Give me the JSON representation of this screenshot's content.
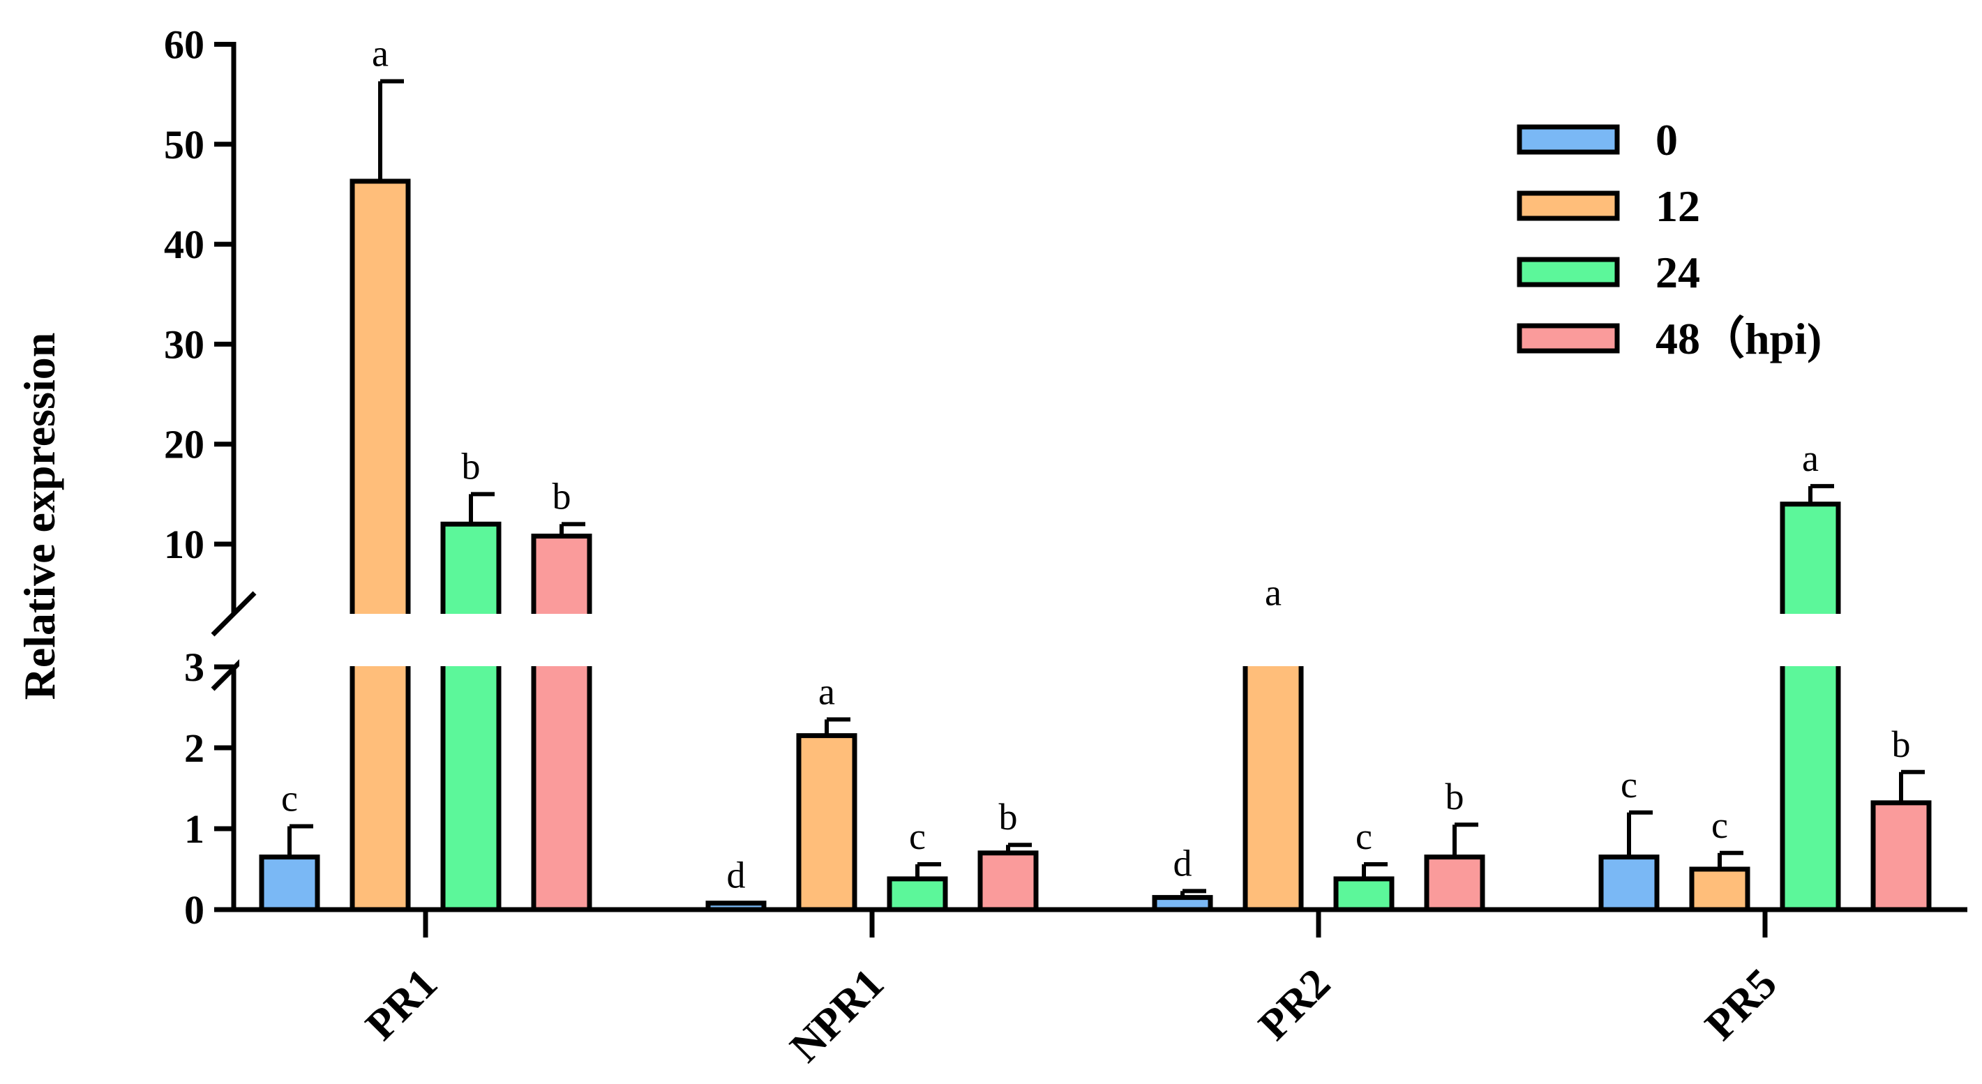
{
  "chart_data": {
    "type": "bar",
    "ylabel": "Relative expression",
    "xlabel": "",
    "categories": [
      "PR1",
      "NPR1",
      "PR2",
      "PR5"
    ],
    "axis_break": {
      "lower_range": [
        0,
        3
      ],
      "upper_range": [
        3,
        60
      ]
    },
    "lower_ticks": [
      "0",
      "1",
      "2",
      "3"
    ],
    "upper_ticks": [
      "10",
      "20",
      "30",
      "40",
      "50",
      "60"
    ],
    "legend_position": "top-right",
    "series": [
      {
        "name": "0",
        "color": "#7ab8f5",
        "values": [
          0.65,
          0.08,
          0.15,
          0.65
        ],
        "errors": [
          0.38,
          0.0,
          0.08,
          0.55
        ],
        "letters": [
          "c",
          "d",
          "d",
          "c"
        ]
      },
      {
        "name": "12",
        "color": "#ffbe7a",
        "values": [
          46.3,
          2.15,
          4.5,
          0.5
        ],
        "errors": [
          10.0,
          0.2,
          1.2,
          0.2
        ],
        "letters": [
          "a",
          "a",
          "a",
          "c"
        ]
      },
      {
        "name": "24",
        "color": "#5cf79a",
        "values": [
          12.0,
          0.38,
          0.38,
          14.0
        ],
        "errors": [
          3.0,
          0.18,
          0.18,
          1.8
        ],
        "letters": [
          "b",
          "c",
          "c",
          "a"
        ]
      },
      {
        "name": "48（hpi)",
        "color": "#fa9b9b",
        "values": [
          10.8,
          0.7,
          0.65,
          1.32
        ],
        "errors": [
          1.2,
          0.1,
          0.4,
          0.38
        ],
        "letters": [
          "b",
          "b",
          "b",
          "b"
        ]
      }
    ]
  }
}
